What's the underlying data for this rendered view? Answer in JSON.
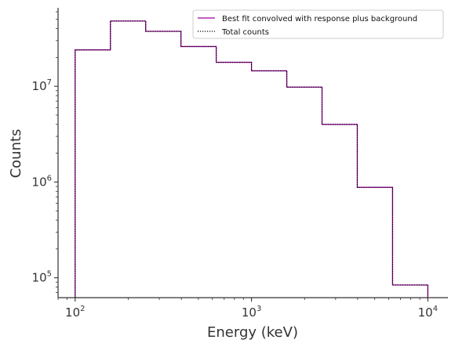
{
  "chart_data": {
    "type": "line",
    "drawstyle": "step",
    "xscale": "log",
    "yscale": "log",
    "xlabel": "Energy (keV)",
    "ylabel": "Counts",
    "xlim": [
      80,
      13000
    ],
    "ylim": [
      62000,
      66000000
    ],
    "bin_edges": [
      100,
      158.5,
      251.2,
      398.1,
      631,
      1000,
      1585,
      2512,
      3981,
      6310,
      10000
    ],
    "x_ticks": [
      {
        "value": 100,
        "base": "10",
        "exp": "2"
      },
      {
        "value": 1000,
        "base": "10",
        "exp": "3"
      },
      {
        "value": 10000,
        "base": "10",
        "exp": "4"
      }
    ],
    "y_ticks": [
      {
        "value": 100000,
        "base": "10",
        "exp": "5"
      },
      {
        "value": 1000000,
        "base": "10",
        "exp": "6"
      },
      {
        "value": 10000000,
        "base": "10",
        "exp": "7"
      }
    ],
    "series": [
      {
        "name": "Best fit convolved with response plus background",
        "color": "#990099",
        "style": "solid",
        "values": [
          24000000,
          48000000,
          37500000,
          26000000,
          17800000,
          14500000,
          9800000,
          4000000,
          880000,
          84000
        ]
      },
      {
        "name": "Total counts",
        "color": "#000000",
        "style": "dotted",
        "values": [
          24000000,
          48000000,
          37500000,
          26000000,
          17800000,
          14500000,
          9800000,
          4000000,
          880000,
          84000
        ]
      }
    ],
    "legend_position": "top-right",
    "grid": false
  }
}
